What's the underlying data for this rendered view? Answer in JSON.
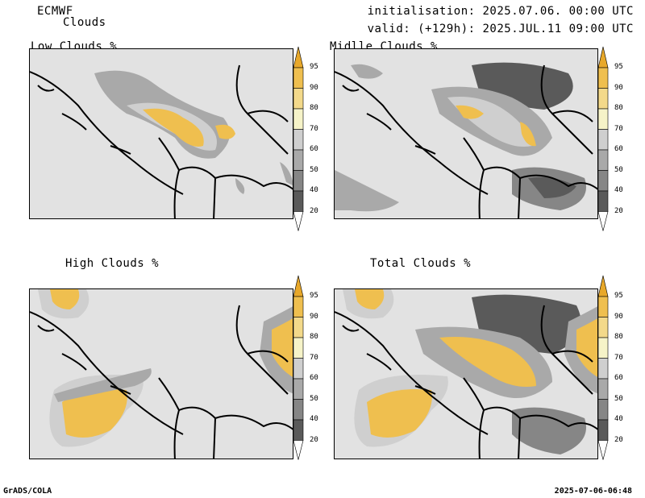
{
  "header": {
    "model": "ECMWF",
    "product": "Clouds",
    "init": "initialisation: 2025.07.06. 00:00 UTC",
    "valid": "valid: (+129h): 2025.JUL.11 09:00 UTC"
  },
  "panels": [
    {
      "title": "Low Clouds %",
      "variable": "low-clouds"
    },
    {
      "title": "Midlle Clouds %",
      "variable": "middle-clouds"
    },
    {
      "title": "High Clouds %",
      "variable": "high-clouds"
    },
    {
      "title": "Total Clouds %",
      "variable": "total-clouds"
    }
  ],
  "colorbar": {
    "levels": [
      "95",
      "90",
      "80",
      "70",
      "60",
      "50",
      "40",
      "20"
    ],
    "colors": [
      "#e8a82a",
      "#efbf4f",
      "#f3d98a",
      "#f6f3c8",
      "#cfcfcf",
      "#a9a9a9",
      "#868686",
      "#5a5a5a",
      "#ffffff"
    ]
  },
  "footer": {
    "left": "GrADS/COLA",
    "right": "2025-07-06-06:48"
  }
}
